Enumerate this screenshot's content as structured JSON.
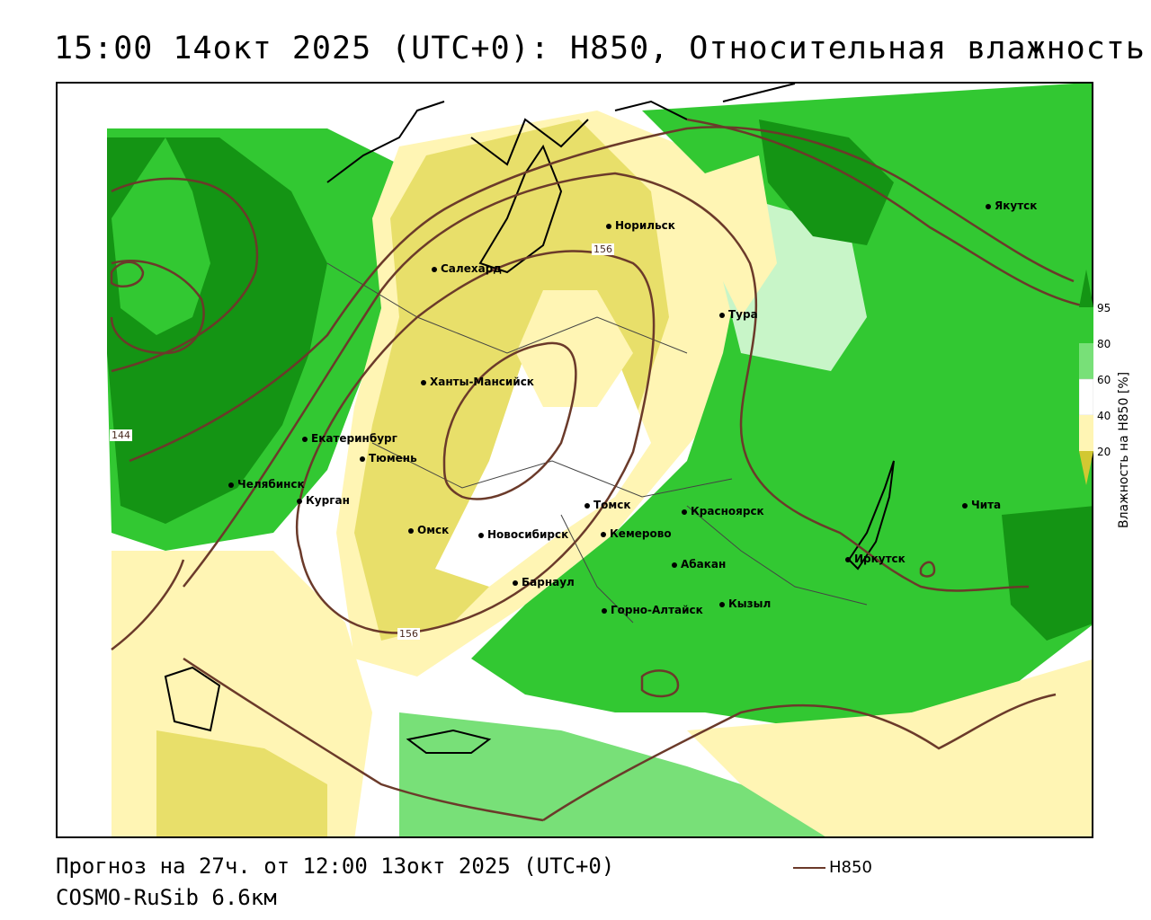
{
  "title": "15:00 14окт 2025 (UTC+0): H850, Относительная влажность",
  "footer": {
    "forecast": "Прогноз на 27ч. от 12:00 13окт 2025 (UTC+0)",
    "model": "COSMO-RuSib 6.6км",
    "line_legend_label": "H850"
  },
  "legend": {
    "title": "Влажность на H850 [%]",
    "ticks": [
      "95",
      "80",
      "60",
      "40",
      "20"
    ],
    "colors": {
      "dark_green": "#149414",
      "green": "#32c832",
      "mid_green": "#78e078",
      "light_green": "#c8f5c8",
      "white": "#ffffff",
      "light_yellow": "#fff5b4",
      "yellow": "#e8df6a",
      "dark_yellow": "#d2c832",
      "contour": "#6b3a2a"
    }
  },
  "contour_labels": [
    "156",
    "156",
    "144"
  ],
  "cities": [
    {
      "name": "Якутск"
    },
    {
      "name": "Норильск"
    },
    {
      "name": "Салехард"
    },
    {
      "name": "Тура"
    },
    {
      "name": "Ханты-Мансийск"
    },
    {
      "name": "Екатеринбург"
    },
    {
      "name": "Тюмень"
    },
    {
      "name": "Челябинск"
    },
    {
      "name": "Курган"
    },
    {
      "name": "Омск"
    },
    {
      "name": "Новосибирск"
    },
    {
      "name": "Томск"
    },
    {
      "name": "Красноярск"
    },
    {
      "name": "Кемерово"
    },
    {
      "name": "Барнаул"
    },
    {
      "name": "Абакан"
    },
    {
      "name": "Горно-Алтайск"
    },
    {
      "name": "Кызыл"
    },
    {
      "name": "Иркутск"
    },
    {
      "name": "Чита"
    }
  ]
}
